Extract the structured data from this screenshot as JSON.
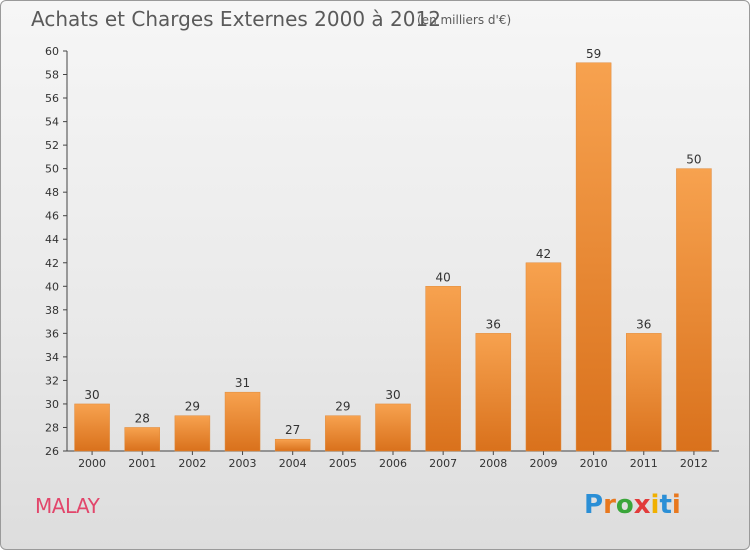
{
  "title": "Achats et Charges Externes 2000 à 2012",
  "subtitle": "(en milliers d'€)",
  "commune": "MALAY",
  "logo": {
    "letters": [
      "P",
      "r",
      "o",
      "x",
      "i",
      "t",
      "i"
    ],
    "colors": [
      "#2b8fd6",
      "#e8781e",
      "#3aa63a",
      "#e23b3b",
      "#f0b000",
      "#2b8fd6",
      "#e8781e"
    ]
  },
  "chart_data": {
    "type": "bar",
    "title": "Achats et Charges Externes 2000 à 2012",
    "subtitle": "(en milliers d'€)",
    "categories": [
      "2000",
      "2001",
      "2002",
      "2003",
      "2004",
      "2005",
      "2006",
      "2007",
      "2008",
      "2009",
      "2010",
      "2011",
      "2012"
    ],
    "values": [
      30,
      28,
      29,
      31,
      27,
      29,
      30,
      40,
      36,
      42,
      59,
      36,
      50
    ],
    "ylim": [
      26,
      60
    ],
    "yticks": [
      26,
      28,
      30,
      32,
      34,
      36,
      38,
      40,
      42,
      44,
      46,
      48,
      50,
      52,
      54,
      56,
      58,
      60
    ],
    "grid": false,
    "bar_color": "#f0943a"
  }
}
